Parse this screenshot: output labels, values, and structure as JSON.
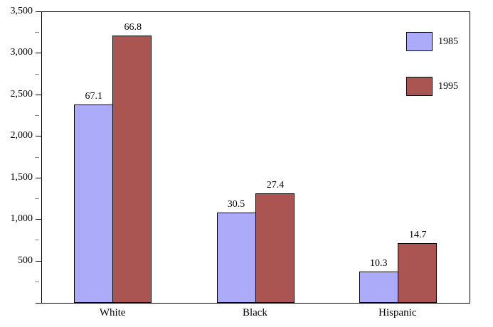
{
  "chart_data": {
    "type": "bar",
    "title": "",
    "xlabel": "",
    "ylabel": "",
    "categories": [
      "White",
      "Black",
      "Hispanic"
    ],
    "series": [
      {
        "name": "1985",
        "color": "#ababfa",
        "values": [
          2390,
          1085,
          375
        ],
        "bar_labels": [
          "67.1",
          "30.5",
          "10.3"
        ]
      },
      {
        "name": "1995",
        "color": "#aa5552",
        "values": [
          3220,
          1320,
          715
        ],
        "bar_labels": [
          "66.8",
          "27.4",
          "14.7"
        ]
      }
    ],
    "ylim": [
      0,
      3500
    ],
    "y_major_tick_step": 500,
    "y_minor_tick_step": 250,
    "y_tick_labels": [
      "500",
      "1,000",
      "1,500",
      "2,000",
      "2,500",
      "3,000",
      "3,500"
    ],
    "grid": false,
    "legend_position": "top-right",
    "legend_entries": [
      "1985",
      "1995"
    ],
    "colors": {
      "axis": "#000000",
      "minor_tick": "#888888",
      "background": "#ffffff",
      "text": "#000000"
    }
  }
}
